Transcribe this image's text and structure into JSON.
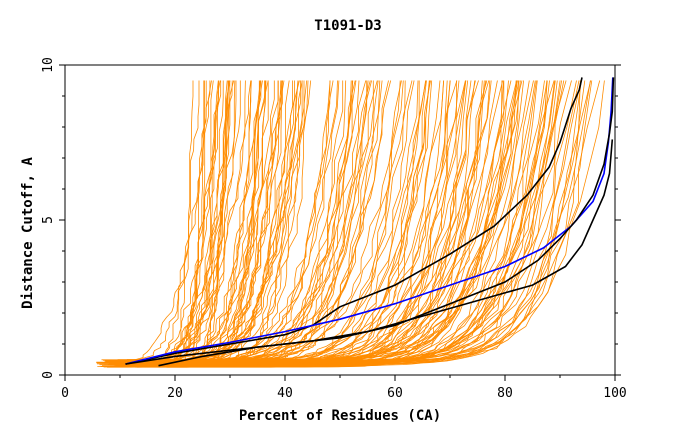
{
  "chart_data": {
    "type": "line",
    "title": "T1091-D3",
    "xlabel": "Percent of Residues (CA)",
    "ylabel": "Distance Cutoff, A",
    "xlim": [
      0,
      100
    ],
    "ylim": [
      0,
      10
    ],
    "xticks": [
      "0",
      "20",
      "40",
      "60",
      "80",
      "100"
    ],
    "yticks": [
      "0",
      "5",
      "10"
    ],
    "grid": false,
    "legend": "none",
    "colors": {
      "background_lines": "#ff8c00",
      "highlight_black": "#000000",
      "highlight_blue": "#0000ff"
    },
    "series": [
      {
        "color": "#000000",
        "points": [
          [
            11,
            0.35
          ],
          [
            20,
            0.7
          ],
          [
            30,
            1.0
          ],
          [
            40,
            1.3
          ],
          [
            45,
            1.6
          ],
          [
            50,
            2.2
          ],
          [
            60,
            2.9
          ],
          [
            70,
            3.9
          ],
          [
            78,
            4.8
          ],
          [
            84,
            5.8
          ],
          [
            88,
            6.7
          ],
          [
            90,
            7.5
          ],
          [
            92,
            8.6
          ],
          [
            93.5,
            9.2
          ],
          [
            94,
            9.6
          ]
        ]
      },
      {
        "color": "#0000ff",
        "points": [
          [
            11,
            0.35
          ],
          [
            20,
            0.75
          ],
          [
            30,
            1.05
          ],
          [
            40,
            1.4
          ],
          [
            50,
            1.8
          ],
          [
            60,
            2.3
          ],
          [
            70,
            2.9
          ],
          [
            80,
            3.5
          ],
          [
            87,
            4.1
          ],
          [
            92,
            4.8
          ],
          [
            96,
            5.6
          ],
          [
            98,
            6.5
          ],
          [
            98.8,
            7.5
          ],
          [
            99.3,
            8.5
          ],
          [
            99.6,
            9.6
          ]
        ]
      },
      {
        "color": "#000000",
        "points": [
          [
            11,
            0.35
          ],
          [
            20,
            0.6
          ],
          [
            30,
            0.8
          ],
          [
            40,
            1.0
          ],
          [
            50,
            1.2
          ],
          [
            60,
            1.6
          ],
          [
            70,
            2.3
          ],
          [
            80,
            3.0
          ],
          [
            86,
            3.7
          ],
          [
            90,
            4.4
          ],
          [
            93,
            5.0
          ],
          [
            96,
            5.8
          ],
          [
            98,
            6.8
          ],
          [
            99,
            7.8
          ],
          [
            99.5,
            8.5
          ],
          [
            99.7,
            9.6
          ]
        ]
      },
      {
        "color": "#000000",
        "points": [
          [
            17,
            0.3
          ],
          [
            25,
            0.6
          ],
          [
            35,
            0.9
          ],
          [
            45,
            1.1
          ],
          [
            55,
            1.4
          ],
          [
            65,
            1.9
          ],
          [
            75,
            2.4
          ],
          [
            85,
            2.9
          ],
          [
            91,
            3.5
          ],
          [
            94,
            4.2
          ],
          [
            96,
            5.0
          ],
          [
            98,
            5.8
          ],
          [
            99,
            6.5
          ],
          [
            99.5,
            7.6
          ]
        ]
      }
    ]
  }
}
